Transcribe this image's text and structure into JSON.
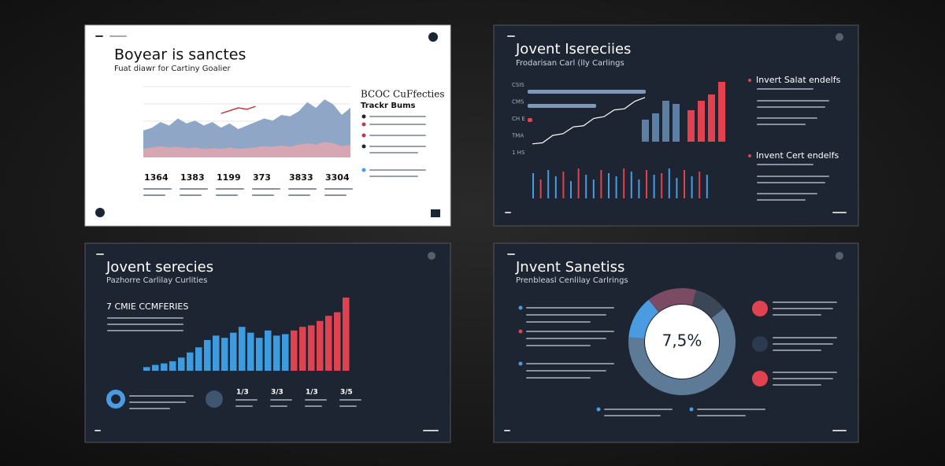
{
  "slides": [
    {
      "title": "Boyear is sanctes",
      "subtitle": "Fuat diawr for Cartiny Goalier",
      "side_title": "BCOC CuFfecties",
      "side_subtitle": "Trackr Bums",
      "stats": [
        "1364",
        "1383",
        "1199",
        "373",
        "3833",
        "3304"
      ],
      "chart": {
        "type": "area",
        "ylim": [
          0,
          100
        ],
        "series": [
          {
            "color": "#8fa6c6",
            "values": [
              38,
              42,
              50,
              45,
              55,
              48,
              52,
              45,
              50,
              42,
              48,
              40,
              45,
              50,
              55,
              52,
              60,
              58,
              65,
              78,
              70,
              82,
              75,
              60,
              70
            ]
          },
          {
            "color": "#d6a6b2",
            "values": [
              12,
              14,
              16,
              14,
              15,
              13,
              14,
              12,
              13,
              12,
              14,
              12,
              13,
              14,
              16,
              15,
              17,
              15,
              18,
              20,
              18,
              22,
              20,
              16,
              18
            ]
          }
        ],
        "line": {
          "color": "#c0394b",
          "values": [
            null,
            null,
            null,
            null,
            null,
            null,
            null,
            null,
            null,
            62,
            66,
            70,
            68,
            72,
            null,
            null,
            null,
            null,
            null,
            null,
            null,
            null,
            null,
            null,
            null
          ]
        }
      }
    },
    {
      "title": "Jovent Isereciies",
      "subtitle": "Frodarisan Carl (lly Carlings",
      "side_title_1": "Invert Salat endelfs",
      "side_title_2": "Invent Cert endelfs",
      "row_labels": [
        "CSIS",
        "CMS",
        "CH E",
        "TMA",
        "1 HS"
      ],
      "hbars": {
        "xlim": [
          0,
          100
        ],
        "values": [
          100,
          58,
          4
        ],
        "colors": [
          "#7f98b8",
          "#7f98b8",
          "#e0434f"
        ]
      },
      "step_line": {
        "ylim": [
          0,
          100
        ],
        "color": "#ffffff",
        "values": [
          10,
          12,
          25,
          28,
          40,
          42,
          55,
          58,
          70,
          72,
          85,
          92
        ]
      },
      "bars": {
        "ylim": [
          0,
          100
        ],
        "values": [
          35,
          45,
          65,
          60,
          50,
          65,
          75,
          95
        ],
        "colors": [
          "#5f7ea3",
          "#5f7ea3",
          "#5f7ea3",
          "#5f7ea3",
          "#e0434f",
          "#e0434f",
          "#e0434f",
          "#e0434f"
        ]
      },
      "ticks": {
        "ylim": [
          0,
          100
        ],
        "values": [
          80,
          60,
          90,
          70,
          85,
          55,
          95,
          75,
          60,
          90,
          80,
          70,
          95,
          85,
          60,
          90,
          75,
          80,
          95,
          65,
          90,
          70,
          85,
          75
        ],
        "colors": [
          "#4a9be0",
          "#e0434f",
          "#4a9be0",
          "#4a9be0",
          "#e0434f",
          "#4a9be0",
          "#e0434f",
          "#4a9be0",
          "#4a9be0",
          "#e0434f",
          "#4a9be0",
          "#4a9be0",
          "#e0434f",
          "#4a9be0",
          "#4a9be0",
          "#e0434f",
          "#4a9be0",
          "#e0434f",
          "#4a9be0",
          "#4a9be0",
          "#e0434f",
          "#4a9be0",
          "#e0434f",
          "#4a9be0"
        ]
      }
    },
    {
      "title": "Jovent serecies",
      "subtitle": "Pazhorre Carlilay Curlities",
      "heading": "7 CMIE CCMFERIES",
      "stats": [
        "1/3",
        "3/3",
        "1/3",
        "3/5"
      ],
      "bars": {
        "ylim": [
          0,
          100
        ],
        "values": [
          5,
          8,
          10,
          13,
          18,
          25,
          32,
          42,
          48,
          45,
          52,
          60,
          52,
          45,
          55,
          48,
          50,
          55,
          60,
          62,
          68,
          75,
          80,
          100
        ],
        "colors": [
          "#3d9be0",
          "#3d9be0",
          "#3d9be0",
          "#3d9be0",
          "#3d9be0",
          "#3d9be0",
          "#3d9be0",
          "#3d9be0",
          "#3d9be0",
          "#3d9be0",
          "#3d9be0",
          "#3d9be0",
          "#3d9be0",
          "#3d9be0",
          "#3d9be0",
          "#3d9be0",
          "#3d9be0",
          "#e0434f",
          "#e0434f",
          "#e0434f",
          "#e0434f",
          "#e0434f",
          "#e0434f",
          "#e0434f"
        ]
      }
    },
    {
      "title": "Jnvent Sanetiss",
      "subtitle": "Prenbleasl Cenlilay Carlrings",
      "center_label": "7,5%",
      "donut": {
        "values": [
          62,
          13,
          15,
          10
        ],
        "colors": [
          "#5d7a96",
          "#4a9be0",
          "#7b4a63",
          "#3b4656"
        ]
      }
    }
  ]
}
